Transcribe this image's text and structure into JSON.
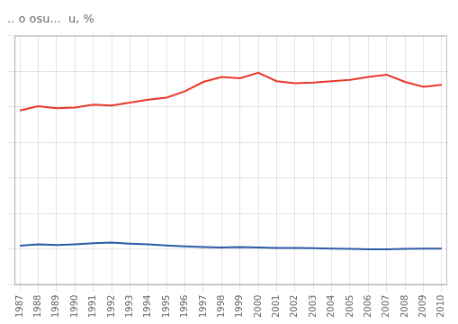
{
  "chart_data": {
    "type": "line",
    "title": ".. o osu...  u, %",
    "x": [
      1987,
      1988,
      1989,
      1990,
      1991,
      1992,
      1993,
      1994,
      1995,
      1996,
      1997,
      1998,
      1999,
      2000,
      2001,
      2002,
      2003,
      2004,
      2005,
      2006,
      2007,
      2008,
      2009,
      2010
    ],
    "series": [
      {
        "color": "#e8382a",
        "values": [
          24.5,
          25.1,
          24.8,
          24.9,
          25.3,
          25.2,
          25.6,
          26.0,
          26.3,
          27.2,
          28.5,
          29.2,
          29.0,
          29.8,
          28.6,
          28.3,
          28.4,
          28.6,
          28.8,
          29.2,
          29.5,
          28.5,
          27.8,
          28.1
        ]
      },
      {
        "color": "#2b5ba8",
        "values": [
          5.5,
          5.7,
          5.6,
          5.7,
          5.85,
          5.95,
          5.8,
          5.7,
          5.55,
          5.4,
          5.3,
          5.25,
          5.3,
          5.25,
          5.2,
          5.2,
          5.15,
          5.1,
          5.05,
          5.0,
          5.0,
          5.05,
          5.1,
          5.1
        ]
      }
    ],
    "xlim": [
      1986.7,
      2010.3
    ],
    "xticks": [
      1987,
      1988,
      1989,
      1990,
      1991,
      1992,
      1993,
      1994,
      1995,
      1996,
      1997,
      1998,
      1999,
      2000,
      2001,
      2002,
      2003,
      2004,
      2005,
      2006,
      2007,
      2008,
      2009,
      2010
    ],
    "ylim": [
      0,
      35
    ],
    "yticks": [
      0,
      5,
      10,
      15,
      20,
      25,
      30,
      35
    ],
    "grid": true,
    "tick_labels": "x"
  }
}
